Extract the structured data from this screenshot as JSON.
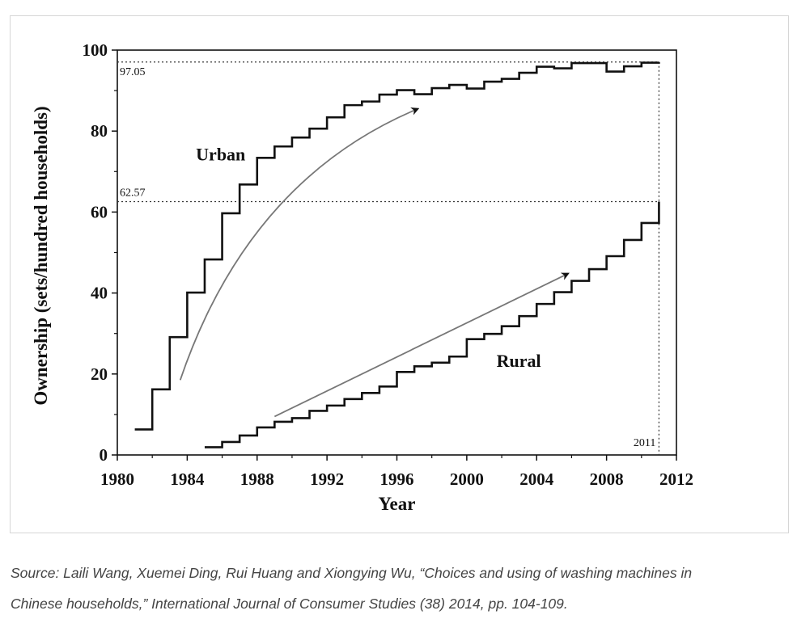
{
  "chart_data": {
    "type": "line",
    "step": true,
    "xlabel": "Year",
    "ylabel": "Ownership (sets/hundred households)",
    "xlim": [
      1980,
      2012
    ],
    "ylim": [
      0,
      100
    ],
    "x_ticks": [
      1980,
      1984,
      1988,
      1992,
      1996,
      2000,
      2004,
      2008,
      2012
    ],
    "y_ticks": [
      0,
      20,
      40,
      60,
      80,
      100
    ],
    "series": [
      {
        "name": "Urban",
        "x": [
          1981,
          1982,
          1983,
          1984,
          1985,
          1986,
          1987,
          1988,
          1989,
          1990,
          1991,
          1992,
          1993,
          1994,
          1995,
          1996,
          1997,
          1998,
          1999,
          2000,
          2001,
          2002,
          2003,
          2004,
          2005,
          2006,
          2007,
          2008,
          2009,
          2010,
          2011
        ],
        "values": [
          6.3,
          16.2,
          29.1,
          40.1,
          48.3,
          59.7,
          66.8,
          73.4,
          76.2,
          78.4,
          80.6,
          83.4,
          86.4,
          87.3,
          89.0,
          90.1,
          89.1,
          90.6,
          91.4,
          90.5,
          92.2,
          92.9,
          94.4,
          95.9,
          95.5,
          96.8,
          96.8,
          94.7,
          96.0,
          96.9,
          97.05
        ]
      },
      {
        "name": "Rural",
        "x": [
          1985,
          1986,
          1987,
          1988,
          1989,
          1990,
          1991,
          1992,
          1993,
          1994,
          1995,
          1996,
          1997,
          1998,
          1999,
          2000,
          2001,
          2002,
          2003,
          2004,
          2005,
          2006,
          2007,
          2008,
          2009,
          2010,
          2011
        ],
        "values": [
          1.9,
          3.2,
          4.8,
          6.8,
          8.2,
          9.1,
          10.9,
          12.2,
          13.8,
          15.3,
          16.9,
          20.5,
          21.9,
          22.8,
          24.3,
          28.6,
          29.9,
          31.8,
          34.3,
          37.3,
          40.2,
          43.0,
          45.9,
          49.1,
          53.1,
          57.3,
          62.57
        ]
      }
    ],
    "annotations": {
      "urban_final_label": "97.05",
      "rural_final_label": "62.57",
      "final_year_label": "2011",
      "urban_final_value": 97.05,
      "rural_final_value": 62.57,
      "final_year": 2011
    }
  },
  "caption": {
    "line1": "Source: Laili Wang, Xuemei Ding, Rui Huang and Xiongying Wu, “Choices and using of washing machines in",
    "line2": "Chinese households,” International Journal of Consumer Studies (38) 2014, pp. 104-109."
  }
}
